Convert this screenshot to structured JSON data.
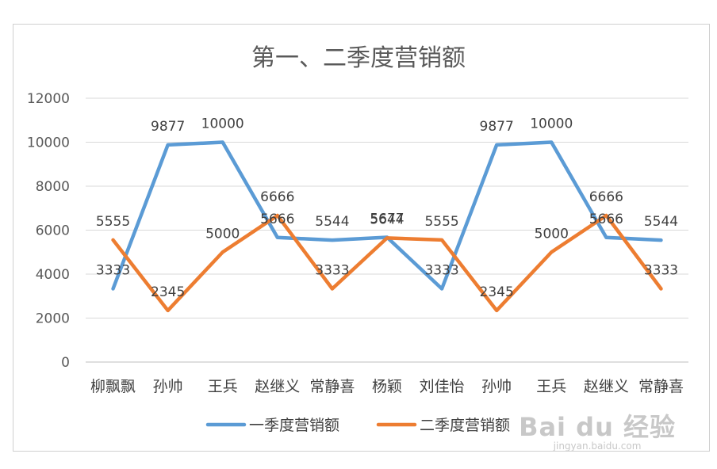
{
  "chart_data": {
    "type": "line",
    "title": "第一、二季度营销额",
    "categories": [
      "柳飘飘",
      "孙帅",
      "王兵",
      "赵继义",
      "常静喜",
      "杨颖",
      "刘佳怡",
      "孙帅",
      "王兵",
      "赵继义",
      "常静喜"
    ],
    "series": [
      {
        "name": "一季度营销额",
        "color": "#5b9bd5",
        "values": [
          3333,
          9877,
          10000,
          5666,
          5544,
          5677,
          3333,
          9877,
          10000,
          5666,
          5544
        ]
      },
      {
        "name": "二季度营销额",
        "color": "#ed7d31",
        "values": [
          5555,
          2345,
          5000,
          6666,
          3333,
          5644,
          5555,
          2345,
          5000,
          6666,
          3333
        ]
      }
    ],
    "yticks": [
      "0",
      "2000",
      "4000",
      "6000",
      "8000",
      "10000",
      "12000"
    ],
    "ylim": [
      0,
      12000
    ],
    "grid": true,
    "legend": "bottom"
  },
  "watermark": {
    "main": "Bai du 经验",
    "sub": "jingyan.baidu.com"
  }
}
